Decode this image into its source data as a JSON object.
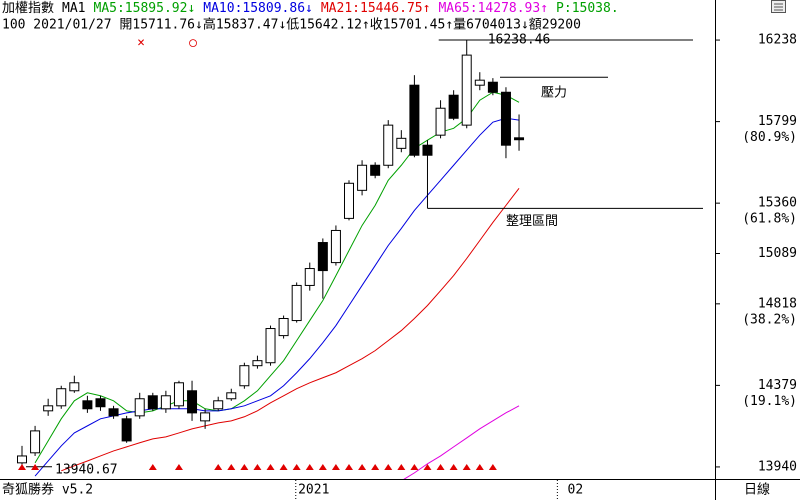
{
  "chart_data": {
    "type": "candlestick",
    "title": "加權指數",
    "subtitle": "MA1",
    "extra": {
      "text": "P:15038.",
      "color": "#00a000"
    },
    "info_line": "100 2021/01/27 開15711.76↓高15837.47↓低15642.12↑收15701.45↑量6704013↓額29200",
    "markers_top": [
      "×",
      "○"
    ],
    "app_label": "奇狐勝券 v5.2",
    "period_label": "日線",
    "categories": [
      null,
      null,
      null,
      null,
      null,
      null,
      null,
      null,
      null,
      null,
      null,
      null,
      null,
      null,
      null,
      null,
      null,
      null,
      null,
      null,
      null,
      null,
      "2021",
      null,
      null,
      null,
      null,
      null,
      null,
      null,
      null,
      null,
      null,
      null,
      null,
      null,
      null,
      null,
      null,
      null,
      null,
      null,
      "02",
      null,
      null,
      null,
      null,
      null,
      null,
      null,
      null,
      null,
      null
    ],
    "open": [
      13962,
      14016,
      14242,
      14269,
      14350,
      14296,
      14307,
      14253,
      14199,
      14215,
      14323,
      14253,
      14269,
      14350,
      14188,
      14253,
      14307,
      14377,
      14485,
      14501,
      14647,
      14728,
      14917,
      15148,
      15040,
      15278,
      15429,
      15564,
      15564,
      15655,
      15995,
      15672,
      15726,
      15941,
      15780,
      15995,
      16011,
      15957,
      15711.76,
      null,
      null,
      null,
      null,
      null,
      null,
      null,
      null,
      null,
      null,
      null,
      null,
      null,
      null
    ],
    "high": [
      14053,
      14161,
      14307,
      14377,
      14431,
      14323,
      14323,
      14269,
      14215,
      14339,
      14339,
      14350,
      14404,
      14404,
      14253,
      14318,
      14361,
      14501,
      14539,
      14701,
      14755,
      14933,
      15040,
      15170,
      15240,
      15483,
      15591,
      15580,
      15807,
      15753,
      16049,
      15699,
      15914,
      15968,
      16238.46,
      16065,
      16033,
      15984,
      15837.47,
      null,
      null,
      null,
      null,
      null,
      null,
      null,
      null,
      null,
      null,
      null,
      null,
      null,
      null
    ],
    "low": [
      13940.67,
      13999,
      14215,
      14253,
      14339,
      14231,
      14242,
      14199,
      14070,
      14199,
      14242,
      14231,
      14253,
      14188,
      14145,
      14242,
      14296,
      14361,
      14469,
      14485,
      14631,
      14717,
      14889,
      14846,
      15024,
      15267,
      15402,
      15494,
      15548,
      15634,
      15607,
      15332,
      15709,
      15807,
      15763,
      15968,
      15941,
      15602,
      15642.12,
      null,
      null,
      null,
      null,
      null,
      null,
      null,
      null,
      null,
      null,
      null,
      null,
      null,
      null
    ],
    "close": [
      13999,
      14134,
      14269,
      14361,
      14393,
      14253,
      14264,
      14215,
      14080,
      14307,
      14253,
      14323,
      14393,
      14231,
      14231,
      14296,
      14339,
      14485,
      14512,
      14685,
      14739,
      14917,
      15008,
      14997,
      15213,
      15467,
      15564,
      15510,
      15780,
      15709,
      15618,
      15618,
      15871,
      15817,
      16157,
      16022,
      15957,
      15672,
      15701.45,
      null,
      null,
      null,
      null,
      null,
      null,
      null,
      null,
      null,
      null,
      null,
      null,
      null,
      null
    ],
    "series": [
      {
        "name": "MA5",
        "color": "#00a000",
        "last_label": ":15895.92",
        "arrow": "↓",
        "values": [
          null,
          13962,
          14080,
          14199,
          14296,
          14339,
          14323,
          14296,
          14242,
          14231,
          14242,
          14269,
          14296,
          14296,
          14253,
          14242,
          14253,
          14296,
          14350,
          14431,
          14512,
          14620,
          14728,
          14836,
          14970,
          15105,
          15240,
          15348,
          15483,
          15564,
          15655,
          15699,
          15742,
          15763,
          15817,
          15914,
          15957,
          15941,
          15903,
          null,
          null,
          null,
          null,
          null,
          null,
          null,
          null,
          null,
          null,
          null,
          null,
          null,
          null
        ]
      },
      {
        "name": "MA10",
        "color": "#0000e0",
        "last_label": ":15809.86",
        "arrow": "↓",
        "values": [
          null,
          13891,
          13972,
          14053,
          14123,
          14161,
          14199,
          14215,
          14231,
          14242,
          14253,
          14253,
          14253,
          14253,
          14242,
          14242,
          14253,
          14269,
          14296,
          14323,
          14377,
          14447,
          14523,
          14609,
          14701,
          14809,
          14917,
          15024,
          15132,
          15224,
          15321,
          15402,
          15483,
          15564,
          15645,
          15726,
          15796,
          15817,
          15807,
          null,
          null,
          null,
          null,
          null,
          null,
          null,
          null,
          null,
          null,
          null,
          null,
          null,
          null
        ]
      },
      {
        "name": "MA21",
        "color": "#e00000",
        "last_label": ":15446.75",
        "arrow": "↑",
        "values": [
          null,
          null,
          null,
          13919,
          13946,
          13972,
          13999,
          14026,
          14048,
          14070,
          14091,
          14102,
          14123,
          14145,
          14161,
          14177,
          14188,
          14210,
          14242,
          14285,
          14323,
          14361,
          14393,
          14420,
          14447,
          14485,
          14523,
          14566,
          14620,
          14674,
          14739,
          14809,
          14889,
          14970,
          15062,
          15159,
          15256,
          15348,
          15440,
          null,
          null,
          null,
          null,
          null,
          null,
          null,
          null,
          null,
          null,
          null,
          null,
          null,
          null
        ]
      },
      {
        "name": "MA65",
        "color": "#e000e0",
        "last_label": ":14278.93",
        "arrow": "↑",
        "values": [
          null,
          null,
          null,
          null,
          null,
          null,
          null,
          null,
          null,
          null,
          null,
          null,
          null,
          null,
          null,
          null,
          null,
          null,
          null,
          null,
          null,
          null,
          null,
          null,
          null,
          null,
          null,
          null,
          null,
          13865,
          13908,
          13957,
          13999,
          14048,
          14096,
          14145,
          14188,
          14231,
          14269,
          null,
          null,
          null,
          null,
          null,
          null,
          null,
          null,
          null,
          null,
          null,
          null,
          null,
          null
        ]
      }
    ],
    "signal_markers": [
      0,
      1,
      10,
      12,
      15,
      16,
      17,
      18,
      19,
      20,
      21,
      22,
      23,
      24,
      25,
      26,
      27,
      28,
      29,
      30,
      31,
      32,
      33,
      34,
      35,
      36
    ],
    "resistance": {
      "label": "壓力",
      "value": 16038
    },
    "range_label": "整理區間",
    "ylim": [
      13875,
      16276
    ],
    "yticks": [
      16238,
      15799,
      15360,
      15089,
      14818,
      14379,
      13940
    ],
    "fib_levels": [
      {
        "value": 15799,
        "label": "(80.9%)"
      },
      {
        "value": 15360,
        "label": "(61.8%)"
      },
      {
        "value": 14818,
        "label": "(38.2%)"
      },
      {
        "value": 14379,
        "label": "(19.1%)"
      }
    ]
  }
}
